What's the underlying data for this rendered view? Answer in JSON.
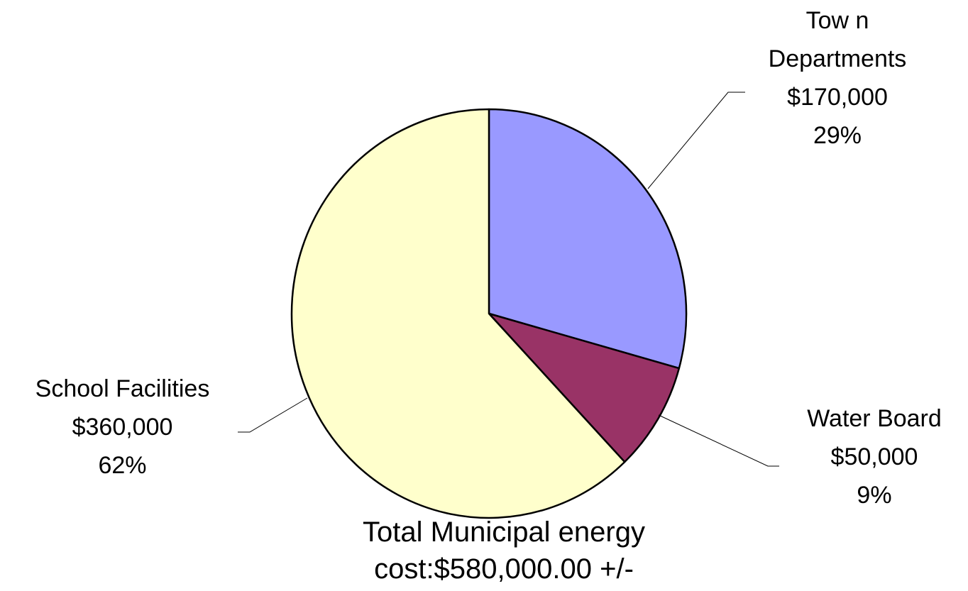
{
  "chart_data": {
    "type": "pie",
    "slices": [
      {
        "key": "town",
        "name_line1": "Tow n",
        "name_line2": "Departments",
        "value": 170000,
        "value_label": "$170,000",
        "percent_label": "29%",
        "color": "#9999FF"
      },
      {
        "key": "water",
        "name_line1": "Water Board",
        "value": 50000,
        "value_label": "$50,000",
        "percent_label": "9%",
        "color": "#993366"
      },
      {
        "key": "school",
        "name_line1": "School Facilities",
        "value": 360000,
        "value_label": "$360,000",
        "percent_label": "62%",
        "color": "#FFFFCC"
      }
    ],
    "note_line1": "Total Municipal energy",
    "note_line2": "cost:$580,000.00 +/-",
    "start_angle": "12 o'clock",
    "direction": "clockwise",
    "legend": "none"
  }
}
